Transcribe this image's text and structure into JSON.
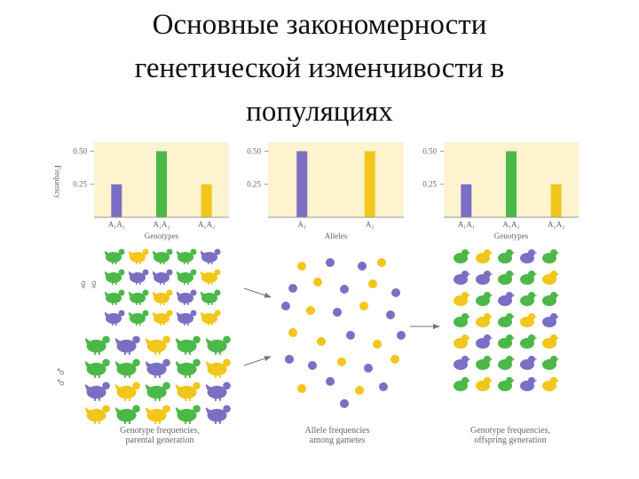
{
  "title": "Основные закономерности генетической изменчивости в популяциях",
  "chart_data": [
    {
      "type": "bar",
      "y_label": "Frequency",
      "x_label": "Genotypes",
      "categories": [
        "A₁A₁",
        "A₁A₂",
        "A₂A₂"
      ],
      "values": [
        0.25,
        0.5,
        0.25
      ],
      "colors": [
        "#7a6fc4",
        "#4cb848",
        "#f2c61a"
      ],
      "ylim": [
        0,
        0.55
      ],
      "yticks": [
        {
          "value": 0.5,
          "label": "0.50"
        },
        0.25
      ]
    },
    {
      "type": "bar",
      "x_label": "Alleles",
      "categories": [
        "A₁",
        "A₂"
      ],
      "values": [
        0.5,
        0.5
      ],
      "colors": [
        "#7a6fc4",
        "#f2c61a"
      ],
      "ylim": [
        0,
        0.55
      ],
      "yticks": [
        {
          "value": 0.5,
          "label": "0.50"
        },
        0.25
      ]
    },
    {
      "type": "bar",
      "x_label": "Genotypes",
      "categories": [
        "A₁A₁",
        "A₁A₂",
        "A₂A₂"
      ],
      "values": [
        0.25,
        0.5,
        0.25
      ],
      "colors": [
        "#7a6fc4",
        "#4cb848",
        "#f2c61a"
      ],
      "ylim": [
        0,
        0.55
      ],
      "yticks": [
        {
          "value": 0.5,
          "label": "0.50"
        },
        0.25
      ]
    }
  ],
  "symbols": {
    "female": "♀♀",
    "male": "♂♂"
  },
  "captions": [
    [
      "Genotype frequencies,",
      "parental generation"
    ],
    [
      "Allele frequencies",
      "among gametes"
    ],
    [
      "Genotype frequencies,",
      "offspring generation"
    ]
  ]
}
